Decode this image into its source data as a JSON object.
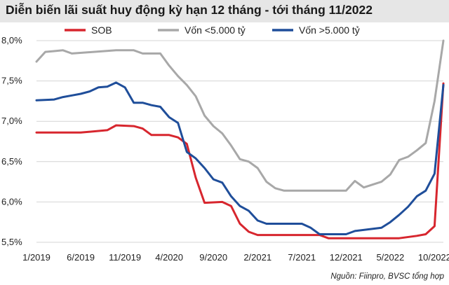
{
  "title": "Diễn biến lãi suất huy động kỳ hạn 12 tháng - tới tháng 11/2022",
  "source": "Nguồn: Fiinpro, BVSC tổng hợp",
  "chart_data": {
    "type": "line",
    "title": "Diễn biến lãi suất huy động kỳ hạn 12 tháng - tới tháng 11/2022",
    "ylabel": "",
    "xlabel": "",
    "ylim": [
      5.5,
      8.0
    ],
    "yticks": [
      5.5,
      6.0,
      6.5,
      7.0,
      7.5,
      8.0
    ],
    "ytick_labels": [
      "5,5%",
      "6,0%",
      "6,5%",
      "7,0%",
      "7,5%",
      "8,0%"
    ],
    "x_range": [
      "2019-01",
      "2022-11"
    ],
    "xticks": [
      "2019-01",
      "2019-06",
      "2019-11",
      "2020-04",
      "2020-09",
      "2021-02",
      "2021-07",
      "2021-12",
      "2022-05",
      "2022-10"
    ],
    "xtick_labels": [
      "1/2019",
      "6/2019",
      "11/2019",
      "4/2020",
      "9/2020",
      "2/2021",
      "7/2021",
      "12/2021",
      "5/2022",
      "10/2022"
    ],
    "grid": true,
    "legend_position": "top",
    "series": [
      {
        "name": "SOB",
        "color": "#d7262e",
        "points": [
          [
            "2019-01",
            6.86
          ],
          [
            "2019-06",
            6.86
          ],
          [
            "2019-09",
            6.89
          ],
          [
            "2019-10",
            6.95
          ],
          [
            "2019-12",
            6.94
          ],
          [
            "2020-01",
            6.91
          ],
          [
            "2020-02",
            6.83
          ],
          [
            "2020-04",
            6.83
          ],
          [
            "2020-05",
            6.8
          ],
          [
            "2020-06",
            6.72
          ],
          [
            "2020-07",
            6.3
          ],
          [
            "2020-08",
            5.99
          ],
          [
            "2020-10",
            6.0
          ],
          [
            "2020-11",
            5.95
          ],
          [
            "2020-12",
            5.73
          ],
          [
            "2021-01",
            5.63
          ],
          [
            "2021-02",
            5.59
          ],
          [
            "2021-07",
            5.59
          ],
          [
            "2021-09",
            5.59
          ],
          [
            "2021-10",
            5.55
          ],
          [
            "2022-06",
            5.55
          ],
          [
            "2022-08",
            5.58
          ],
          [
            "2022-09",
            5.6
          ],
          [
            "2022-10",
            5.7
          ],
          [
            "2022-11",
            7.47
          ]
        ]
      },
      {
        "name": "Vốn <5.000 tỷ",
        "color": "#a8a8a8",
        "points": [
          [
            "2019-01",
            7.74
          ],
          [
            "2019-02",
            7.86
          ],
          [
            "2019-03",
            7.87
          ],
          [
            "2019-04",
            7.88
          ],
          [
            "2019-05",
            7.84
          ],
          [
            "2019-10",
            7.88
          ],
          [
            "2019-12",
            7.88
          ],
          [
            "2020-01",
            7.84
          ],
          [
            "2020-03",
            7.84
          ],
          [
            "2020-04",
            7.69
          ],
          [
            "2020-05",
            7.56
          ],
          [
            "2020-06",
            7.45
          ],
          [
            "2020-07",
            7.31
          ],
          [
            "2020-08",
            7.07
          ],
          [
            "2020-09",
            6.94
          ],
          [
            "2020-10",
            6.85
          ],
          [
            "2020-11",
            6.7
          ],
          [
            "2020-12",
            6.53
          ],
          [
            "2021-01",
            6.5
          ],
          [
            "2021-02",
            6.42
          ],
          [
            "2021-03",
            6.25
          ],
          [
            "2021-04",
            6.17
          ],
          [
            "2021-05",
            6.14
          ],
          [
            "2021-12",
            6.14
          ],
          [
            "2022-01",
            6.26
          ],
          [
            "2022-02",
            6.18
          ],
          [
            "2022-04",
            6.25
          ],
          [
            "2022-05",
            6.34
          ],
          [
            "2022-06",
            6.52
          ],
          [
            "2022-07",
            6.56
          ],
          [
            "2022-08",
            6.64
          ],
          [
            "2022-09",
            6.73
          ],
          [
            "2022-10",
            7.25
          ],
          [
            "2022-11",
            8.0
          ]
        ]
      },
      {
        "name": "Vốn >5.000 tỷ",
        "color": "#1f4e9a",
        "points": [
          [
            "2019-01",
            7.26
          ],
          [
            "2019-03",
            7.27
          ],
          [
            "2019-04",
            7.3
          ],
          [
            "2019-05",
            7.32
          ],
          [
            "2019-06",
            7.34
          ],
          [
            "2019-07",
            7.37
          ],
          [
            "2019-08",
            7.42
          ],
          [
            "2019-09",
            7.43
          ],
          [
            "2019-10",
            7.48
          ],
          [
            "2019-11",
            7.42
          ],
          [
            "2019-12",
            7.23
          ],
          [
            "2020-01",
            7.23
          ],
          [
            "2020-02",
            7.2
          ],
          [
            "2020-03",
            7.18
          ],
          [
            "2020-04",
            7.05
          ],
          [
            "2020-05",
            6.98
          ],
          [
            "2020-06",
            6.62
          ],
          [
            "2020-07",
            6.54
          ],
          [
            "2020-08",
            6.42
          ],
          [
            "2020-09",
            6.28
          ],
          [
            "2020-10",
            6.24
          ],
          [
            "2020-11",
            6.07
          ],
          [
            "2020-12",
            5.95
          ],
          [
            "2021-01",
            5.89
          ],
          [
            "2021-02",
            5.77
          ],
          [
            "2021-03",
            5.73
          ],
          [
            "2021-07",
            5.73
          ],
          [
            "2021-08",
            5.68
          ],
          [
            "2021-09",
            5.6
          ],
          [
            "2021-12",
            5.6
          ],
          [
            "2022-01",
            5.64
          ],
          [
            "2022-04",
            5.68
          ],
          [
            "2022-05",
            5.75
          ],
          [
            "2022-06",
            5.84
          ],
          [
            "2022-07",
            5.94
          ],
          [
            "2022-08",
            6.07
          ],
          [
            "2022-09",
            6.14
          ],
          [
            "2022-10",
            6.35
          ],
          [
            "2022-11",
            7.45
          ]
        ]
      }
    ]
  }
}
